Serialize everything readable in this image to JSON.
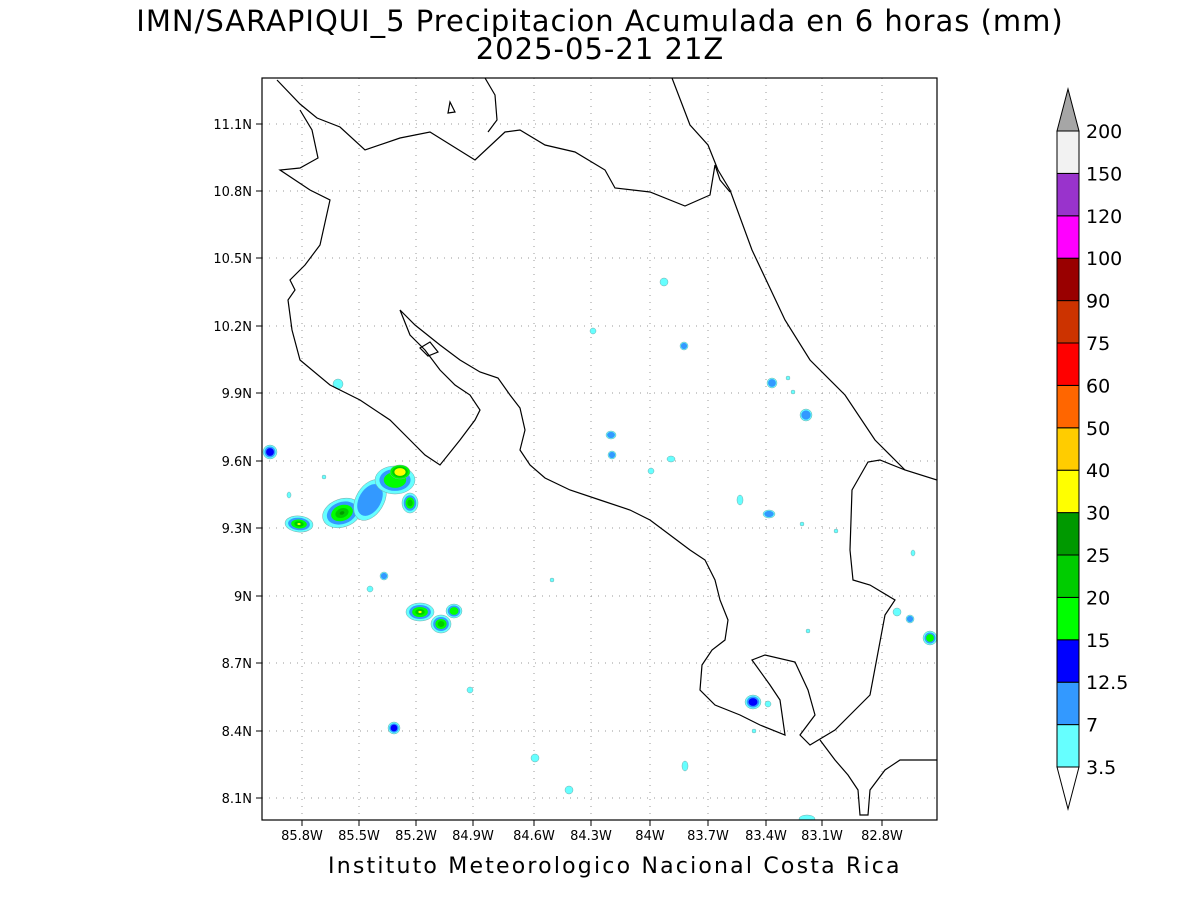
{
  "title": {
    "line1": "IMN/SARAPIQUI_5 Precipitacion Acumulada en 6 horas (mm)",
    "line2": "2025-05-21 21Z"
  },
  "footer": "Instituto Meteorologico Nacional Costa Rica",
  "map": {
    "lon_range": [
      -86.0,
      -82.6
    ],
    "lat_range": [
      8.0,
      11.3
    ],
    "lat_ticks": [
      "11.1N",
      "10.8N",
      "10.5N",
      "10.2N",
      "9.9N",
      "9.6N",
      "9.3N",
      "9N",
      "8.7N",
      "8.4N",
      "8.1N"
    ],
    "lon_ticks": [
      "85.8W",
      "85.5W",
      "85.2W",
      "84.9W",
      "84.6W",
      "84.3W",
      "84W",
      "83.7W",
      "83.4W",
      "83.1W",
      "82.8W"
    ],
    "grid": "dotted"
  },
  "colorbar": {
    "levels": [
      "3.5",
      "7",
      "12.5",
      "15",
      "20",
      "25",
      "30",
      "40",
      "50",
      "60",
      "75",
      "90",
      "100",
      "120",
      "150",
      "200"
    ],
    "colors": [
      "#66ffff",
      "#3399ff",
      "#0000ff",
      "#00ff00",
      "#00cc00",
      "#009900",
      "#ffff00",
      "#ffcc00",
      "#ff6600",
      "#ff0000",
      "#cc3300",
      "#990000",
      "#ff00ff",
      "#9933cc",
      "#f2f2f2",
      "#a6a6a6"
    ]
  }
}
